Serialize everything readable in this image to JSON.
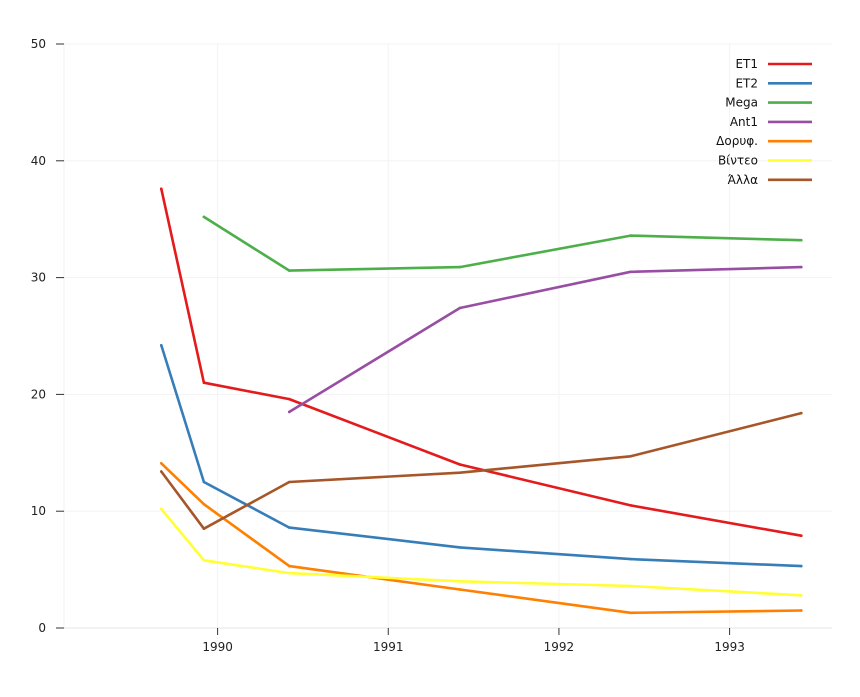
{
  "chart_data": {
    "type": "line",
    "title": "",
    "xlabel": "",
    "ylabel": "",
    "xlim": [
      1989.1,
      1993.6
    ],
    "ylim": [
      0,
      50
    ],
    "x_ticks": [
      1990,
      1991,
      1992,
      1993
    ],
    "x_tick_labels": [
      "1990",
      "1991",
      "1992",
      "1993"
    ],
    "y_ticks": [
      0,
      10,
      20,
      30,
      40,
      50
    ],
    "y_tick_labels": [
      "0",
      "10",
      "20",
      "30",
      "40",
      "50"
    ],
    "grid": true,
    "legend": "top-right",
    "series": [
      {
        "name": "ET1",
        "color": "#e41a1c",
        "x": [
          1989.67,
          1989.92,
          1990.42,
          1991.42,
          1992.42,
          1993.42
        ],
        "y": [
          37.6,
          21.0,
          19.6,
          14.0,
          10.5,
          7.9
        ]
      },
      {
        "name": "ET2",
        "color": "#377eb8",
        "x": [
          1989.67,
          1989.92,
          1990.42,
          1991.42,
          1992.42,
          1993.42
        ],
        "y": [
          24.2,
          12.5,
          8.6,
          6.9,
          5.9,
          5.3
        ]
      },
      {
        "name": "Mega",
        "color": "#4daf4a",
        "x": [
          1989.92,
          1990.42,
          1991.42,
          1992.42,
          1993.42
        ],
        "y": [
          35.2,
          30.6,
          30.9,
          33.6,
          33.2
        ]
      },
      {
        "name": "Ant1",
        "color": "#984ea3",
        "x": [
          1990.42,
          1991.42,
          1992.42,
          1993.42
        ],
        "y": [
          18.5,
          27.4,
          30.5,
          30.9
        ]
      },
      {
        "name": "Δορυφ.",
        "color": "#ff7f00",
        "x": [
          1989.67,
          1989.92,
          1990.42,
          1991.42,
          1992.42,
          1993.42
        ],
        "y": [
          14.1,
          10.6,
          5.3,
          3.3,
          1.3,
          1.5
        ]
      },
      {
        "name": "Βίντεο",
        "color": "#ffff33",
        "x": [
          1989.67,
          1989.92,
          1990.42,
          1991.42,
          1992.42,
          1993.42
        ],
        "y": [
          10.2,
          5.8,
          4.7,
          4.0,
          3.6,
          2.8
        ]
      },
      {
        "name": "Άλλα",
        "color": "#a65628",
        "x": [
          1989.67,
          1989.92,
          1990.42,
          1991.42,
          1992.42,
          1993.42
        ],
        "y": [
          13.4,
          8.5,
          12.5,
          13.3,
          14.7,
          18.4
        ]
      }
    ]
  }
}
